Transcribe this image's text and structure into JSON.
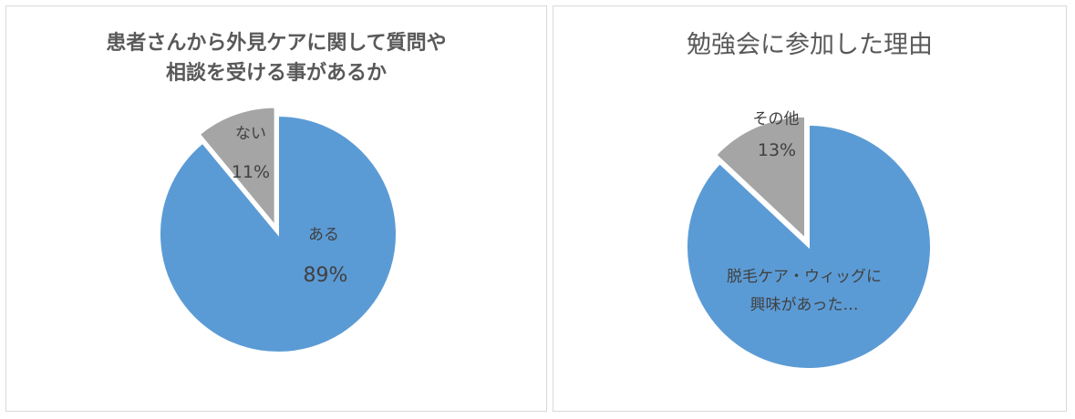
{
  "chart_data": [
    {
      "type": "pie",
      "title_lines": [
        "患者さんから外見ケアに関して質問や",
        "相談を受ける事があるか"
      ],
      "slices": [
        {
          "label": "ある",
          "percent_label": "89%",
          "value": 89,
          "color": "#5b9bd5"
        },
        {
          "label": "ない",
          "percent_label": "11%",
          "value": 11,
          "color": "#a5a5a5"
        }
      ],
      "legend": "none"
    },
    {
      "type": "pie",
      "title_lines": [
        "勉強会に参加した理由"
      ],
      "slices": [
        {
          "label_lines": [
            "脱毛ケア・ウィッグに",
            "興味があった…"
          ],
          "percent_label": "",
          "value": 87,
          "color": "#5b9bd5"
        },
        {
          "label_lines": [
            "その他"
          ],
          "percent_label": "13%",
          "value": 13,
          "color": "#a5a5a5"
        }
      ],
      "legend": "none"
    }
  ]
}
